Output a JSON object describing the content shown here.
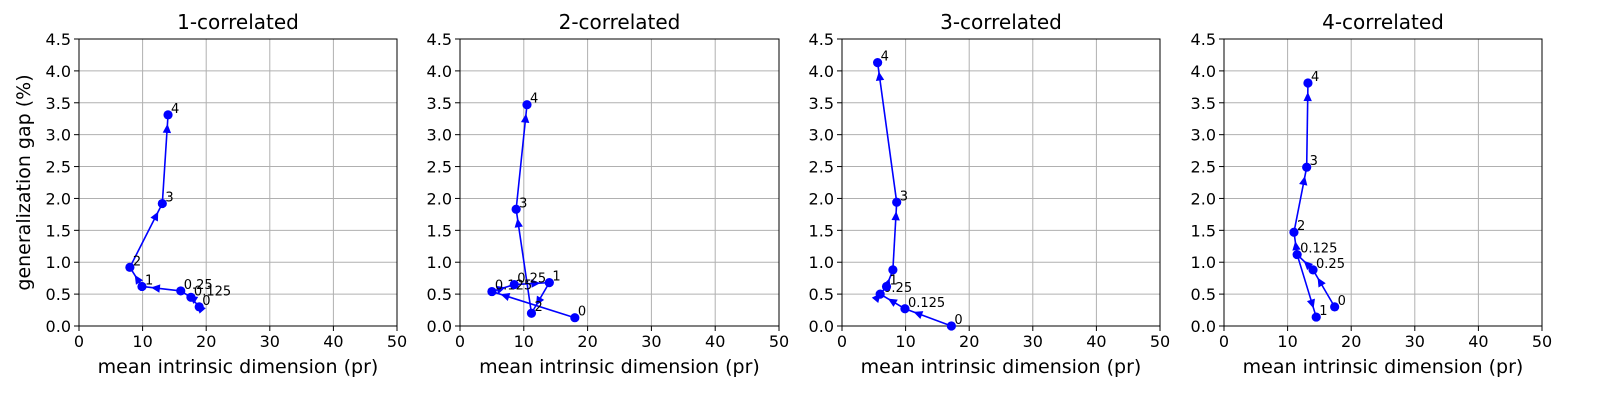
{
  "chart_data": [
    {
      "type": "line",
      "title": "1-correlated",
      "xlabel": "mean intrinsic dimension (pr)",
      "ylabel": "generalization gap (%)",
      "xlim": [
        0,
        50
      ],
      "ylim": [
        0,
        4.5
      ],
      "xticks": [
        0,
        10,
        20,
        30,
        40,
        50
      ],
      "yticks": [
        0.0,
        0.5,
        1.0,
        1.5,
        2.0,
        2.5,
        3.0,
        3.5,
        4.0,
        4.5
      ],
      "grid": true,
      "color": "#0000ff",
      "points": [
        {
          "label": "0",
          "x": 18.9,
          "y": 0.3
        },
        {
          "label": "0.125",
          "x": 17.6,
          "y": 0.45
        },
        {
          "label": "0.25",
          "x": 16.0,
          "y": 0.55
        },
        {
          "label": "1",
          "x": 9.9,
          "y": 0.62
        },
        {
          "label": "2",
          "x": 8.0,
          "y": 0.92
        },
        {
          "label": "3",
          "x": 13.1,
          "y": 1.92
        },
        {
          "label": "4",
          "x": 14.0,
          "y": 3.31
        }
      ]
    },
    {
      "type": "line",
      "title": "2-correlated",
      "xlabel": "mean intrinsic dimension (pr)",
      "ylabel": "",
      "xlim": [
        0,
        50
      ],
      "ylim": [
        0,
        4.5
      ],
      "xticks": [
        0,
        10,
        20,
        30,
        40,
        50
      ],
      "yticks": [
        0.0,
        0.5,
        1.0,
        1.5,
        2.0,
        2.5,
        3.0,
        3.5,
        4.0,
        4.5
      ],
      "grid": true,
      "color": "#0000ff",
      "points": [
        {
          "label": "0",
          "x": 18.0,
          "y": 0.13
        },
        {
          "label": "0.125",
          "x": 5.0,
          "y": 0.54
        },
        {
          "label": "0.25",
          "x": 8.5,
          "y": 0.65
        },
        {
          "label": "1",
          "x": 14.0,
          "y": 0.68
        },
        {
          "label": "2",
          "x": 11.2,
          "y": 0.2
        },
        {
          "label": "3",
          "x": 8.8,
          "y": 1.83
        },
        {
          "label": "4",
          "x": 10.5,
          "y": 3.47
        }
      ]
    },
    {
      "type": "line",
      "title": "3-correlated",
      "xlabel": "mean intrinsic dimension (pr)",
      "ylabel": "",
      "xlim": [
        0,
        50
      ],
      "ylim": [
        0,
        4.5
      ],
      "xticks": [
        0,
        10,
        20,
        30,
        40,
        50
      ],
      "yticks": [
        0.0,
        0.5,
        1.0,
        1.5,
        2.0,
        2.5,
        3.0,
        3.5,
        4.0,
        4.5
      ],
      "grid": true,
      "color": "#0000ff",
      "points": [
        {
          "label": "0",
          "x": 17.2,
          "y": 0.0
        },
        {
          "label": "0.125",
          "x": 9.9,
          "y": 0.27
        },
        {
          "label": "0.25",
          "x": 6.0,
          "y": 0.5
        },
        {
          "label": "1",
          "x": 7.0,
          "y": 0.62
        },
        {
          "label": "",
          "x": 8.0,
          "y": 0.88
        },
        {
          "label": "3",
          "x": 8.6,
          "y": 1.94
        },
        {
          "label": "4",
          "x": 5.6,
          "y": 4.13
        }
      ]
    },
    {
      "type": "line",
      "title": "4-correlated",
      "xlabel": "mean intrinsic dimension (pr)",
      "ylabel": "",
      "xlim": [
        0,
        50
      ],
      "ylim": [
        0,
        4.5
      ],
      "xticks": [
        0,
        10,
        20,
        30,
        40,
        50
      ],
      "yticks": [
        0.0,
        0.5,
        1.0,
        1.5,
        2.0,
        2.5,
        3.0,
        3.5,
        4.0,
        4.5
      ],
      "grid": true,
      "color": "#0000ff",
      "points": [
        {
          "label": "0",
          "x": 17.4,
          "y": 0.3
        },
        {
          "label": "0.25",
          "x": 14.0,
          "y": 0.88
        },
        {
          "label": "0.125",
          "x": 11.5,
          "y": 1.12
        },
        {
          "label": "2",
          "x": 11.0,
          "y": 1.47
        },
        {
          "label": "3",
          "x": 13.0,
          "y": 2.49
        },
        {
          "label": "4",
          "x": 13.2,
          "y": 3.81
        },
        {
          "label": "1",
          "x": 14.5,
          "y": 0.14
        }
      ],
      "path": [
        0,
        1,
        2,
        3,
        4,
        5
      ],
      "extra_segments": [
        [
          2,
          6
        ]
      ]
    }
  ]
}
